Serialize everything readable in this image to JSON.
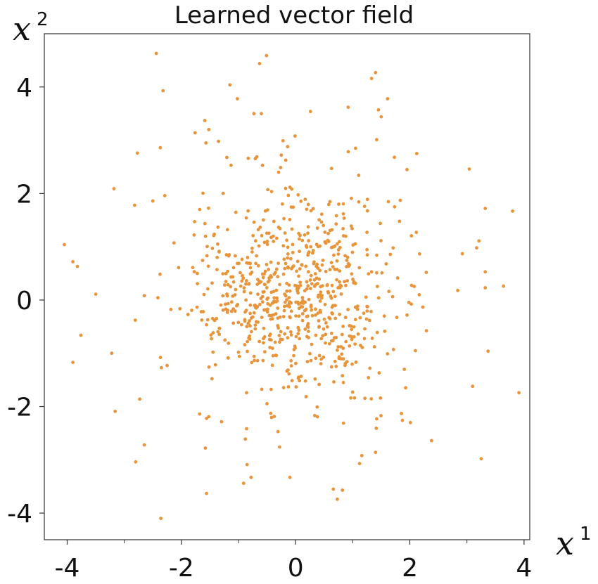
{
  "chart_data": {
    "type": "scatter",
    "title": "Learned vector field",
    "xlabel": "x",
    "xlabel_superscript": "1",
    "ylabel": "x",
    "ylabel_superscript": "2",
    "xlim": [
      -4.4,
      4.1
    ],
    "ylim": [
      -4.5,
      5.0
    ],
    "x_ticks": [
      -4,
      -2,
      0,
      2,
      4
    ],
    "x_tick_labels": [
      "-4",
      "-2",
      "0",
      "2",
      "4"
    ],
    "x_minor_ticks": [
      -3,
      -1,
      1,
      3
    ],
    "y_ticks": [
      -4,
      -2,
      0,
      2,
      4
    ],
    "y_tick_labels": [
      "-4",
      "-2",
      "0",
      "2",
      "4"
    ],
    "grid": false,
    "marker_color": "#e8943a",
    "series": [
      {
        "points": [
          [
            -2.44,
            4.63
          ],
          [
            -0.63,
            4.44
          ],
          [
            -0.51,
            4.59
          ],
          [
            -2.32,
            3.93
          ],
          [
            -1.15,
            4.04
          ],
          [
            -1.02,
            3.78
          ],
          [
            -0.73,
            3.5
          ],
          [
            -0.6,
            3.5
          ],
          [
            -1.59,
            3.37
          ],
          [
            -1.52,
            3.2
          ],
          [
            -1.57,
            2.95
          ],
          [
            -1.35,
            2.98
          ],
          [
            -1.76,
            3.14
          ],
          [
            -2.37,
            2.86
          ],
          [
            -0.22,
            2.99
          ],
          [
            -0.14,
            2.88
          ],
          [
            -0.01,
            3.08
          ],
          [
            -2.77,
            2.76
          ],
          [
            -1.13,
            2.53
          ],
          [
            -0.83,
            2.66
          ],
          [
            -0.68,
            2.69
          ],
          [
            -0.25,
            2.72
          ],
          [
            0.26,
            3.54
          ],
          [
            0.92,
            3.62
          ],
          [
            1.33,
            4.16
          ],
          [
            1.4,
            4.27
          ],
          [
            1.61,
            3.78
          ],
          [
            1.45,
            3.57
          ],
          [
            1.5,
            3.44
          ],
          [
            1.05,
            2.85
          ],
          [
            0.63,
            2.47
          ],
          [
            1.42,
            3.01
          ],
          [
            1.73,
            2.68
          ],
          [
            1.95,
            2.45
          ],
          [
            2.12,
            2.75
          ],
          [
            3.04,
            2.46
          ],
          [
            3.8,
            1.67
          ],
          [
            3.32,
            1.72
          ],
          [
            -2.29,
            1.96
          ],
          [
            -2.5,
            1.86
          ],
          [
            -2.82,
            1.78
          ],
          [
            -3.18,
            2.09
          ],
          [
            -3.9,
            0.72
          ],
          [
            -4.05,
            1.04
          ],
          [
            -3.82,
            0.63
          ],
          [
            -3.5,
            0.11
          ],
          [
            -3.76,
            -0.66
          ],
          [
            -3.9,
            -1.17
          ],
          [
            -3.22,
            -1.0
          ],
          [
            -3.16,
            -2.09
          ],
          [
            -2.73,
            -1.86
          ],
          [
            -2.65,
            -2.72
          ],
          [
            -2.8,
            -3.04
          ],
          [
            -2.36,
            -4.1
          ],
          [
            -2.25,
            -1.23
          ],
          [
            -2.35,
            -1.27
          ],
          [
            -1.68,
            -2.14
          ],
          [
            -1.52,
            -2.19
          ],
          [
            -1.58,
            -2.78
          ],
          [
            -1.56,
            -3.63
          ],
          [
            -0.88,
            -2.61
          ],
          [
            -0.78,
            -3.33
          ],
          [
            -0.91,
            -3.44
          ],
          [
            -0.85,
            -3.09
          ],
          [
            -0.28,
            -2.76
          ],
          [
            -0.1,
            -3.33
          ],
          [
            0.66,
            -3.55
          ],
          [
            0.82,
            -3.57
          ],
          [
            0.73,
            -3.74
          ],
          [
            1.16,
            -2.92
          ],
          [
            1.12,
            -3.07
          ],
          [
            1.4,
            -2.86
          ],
          [
            2.38,
            -2.64
          ],
          [
            3.25,
            -2.98
          ],
          [
            3.91,
            -1.74
          ],
          [
            3.1,
            -1.62
          ],
          [
            3.37,
            -0.96
          ],
          [
            2.84,
            0.18
          ],
          [
            3.32,
            0.53
          ],
          [
            3.64,
            0.26
          ],
          [
            3.32,
            0.23
          ],
          [
            3.17,
            0.98
          ],
          [
            3.21,
            1.11
          ],
          [
            2.92,
            0.87
          ],
          [
            1.42,
            -2.23
          ],
          [
            1.87,
            -2.26
          ],
          [
            2.01,
            -2.3
          ]
        ]
      }
    ],
    "bulk_cluster": {
      "count": 730,
      "center": [
        0.0,
        0.05
      ],
      "sigma": [
        0.95,
        0.95
      ],
      "max_radius": 2.9
    }
  }
}
